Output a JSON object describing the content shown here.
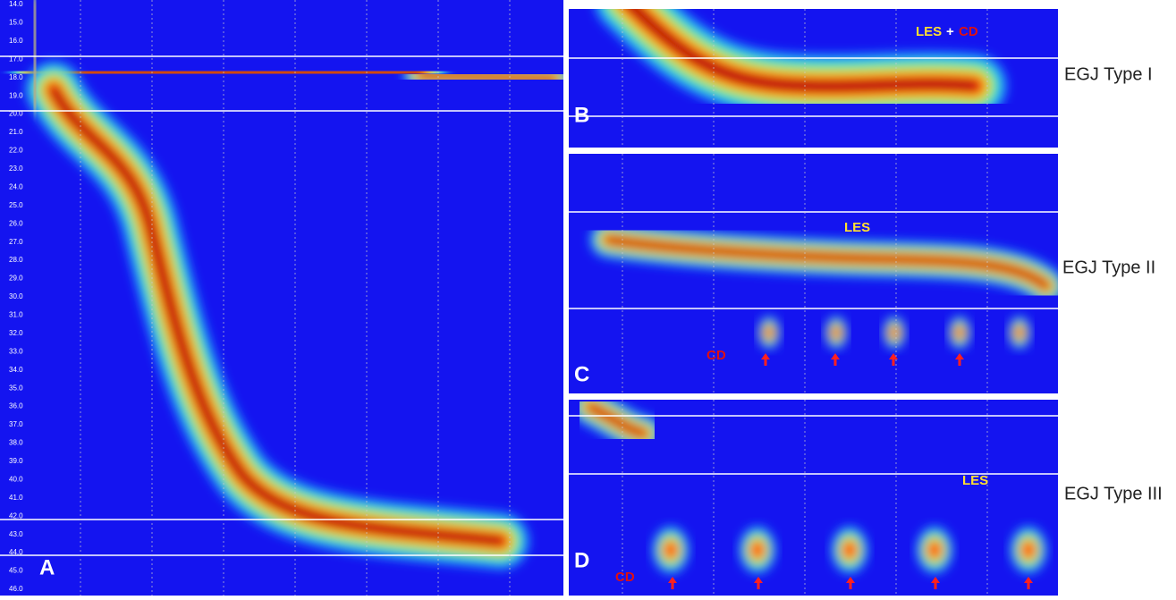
{
  "panel_a": {
    "letter": "A",
    "depth_labels": [
      "14.0",
      "15.0",
      "16.0",
      "17.0",
      "18.0",
      "19.0",
      "20.0",
      "21.0",
      "22.0",
      "23.0",
      "24.0",
      "25.0",
      "26.0",
      "27.0",
      "28.0",
      "29.0",
      "30.0",
      "31.0",
      "32.0",
      "33.0",
      "34.0",
      "35.0",
      "36.0",
      "37.0",
      "38.0",
      "39.0",
      "40.0",
      "41.0",
      "42.0",
      "43.0",
      "44.0",
      "45.0",
      "46.0"
    ]
  },
  "panel_b": {
    "letter": "B",
    "les": "LES",
    "plus": "+",
    "cd": "CD",
    "type_label": "EGJ Type I"
  },
  "panel_c": {
    "letter": "C",
    "les": "LES",
    "cd": "CD",
    "type_label": "EGJ Type II"
  },
  "panel_d": {
    "letter": "D",
    "les": "LES",
    "cd": "CD",
    "type_label": "EGJ Type III"
  }
}
